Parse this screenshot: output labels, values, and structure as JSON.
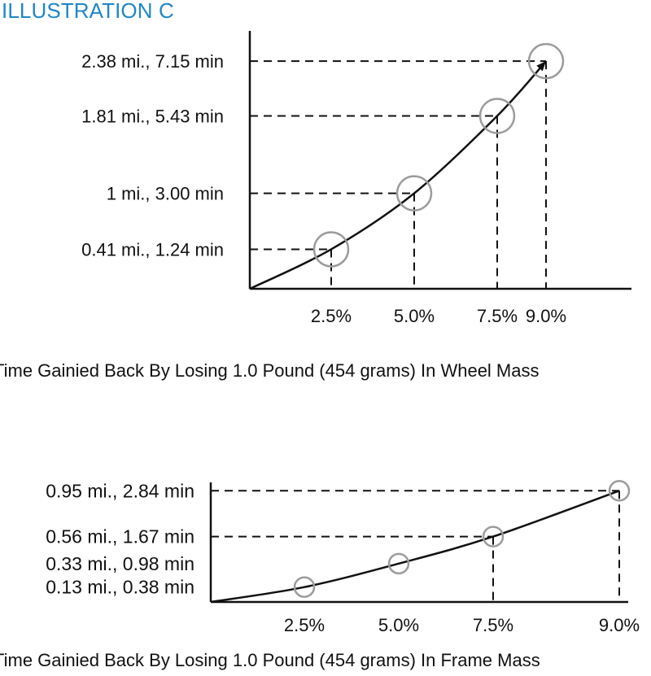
{
  "illustration_label": "ILLUSTRATION C",
  "chart_data": [
    {
      "type": "line",
      "title": "",
      "caption": "Time Gainied Back By Losing 1.0 Pound (454 grams) In Wheel Mass",
      "xlabel": "",
      "ylabel": "",
      "x": [
        "2.5%",
        "5.0%",
        "7.5%",
        "9.0%"
      ],
      "point_labels": [
        "0.41 mi., 1.24 min",
        "1 mi., 3.00 min",
        "1.81 mi., 5.43 min",
        "2.38 mi., 7.15 min"
      ],
      "values": [
        1.24,
        3.0,
        5.43,
        7.15
      ],
      "ylim": [
        0,
        8.1
      ],
      "grid": false,
      "legend": "none"
    },
    {
      "type": "line",
      "title": "",
      "caption": "Time Gainied Back By Losing 1.0 Pound (454 grams) In Frame Mass",
      "xlabel": "",
      "ylabel": "",
      "x": [
        "2.5%",
        "5.0%",
        "7.5%",
        "9.0%"
      ],
      "point_labels": [
        "0.13 mi., 0.38 min",
        "0.33 mi., 0.98 min",
        "0.56 mi., 1.67 min",
        "0.95 mi., 2.84 min"
      ],
      "values": [
        0.38,
        0.98,
        1.67,
        2.84
      ],
      "ylim": [
        0,
        2.95
      ],
      "grid": false,
      "legend": "none"
    }
  ]
}
